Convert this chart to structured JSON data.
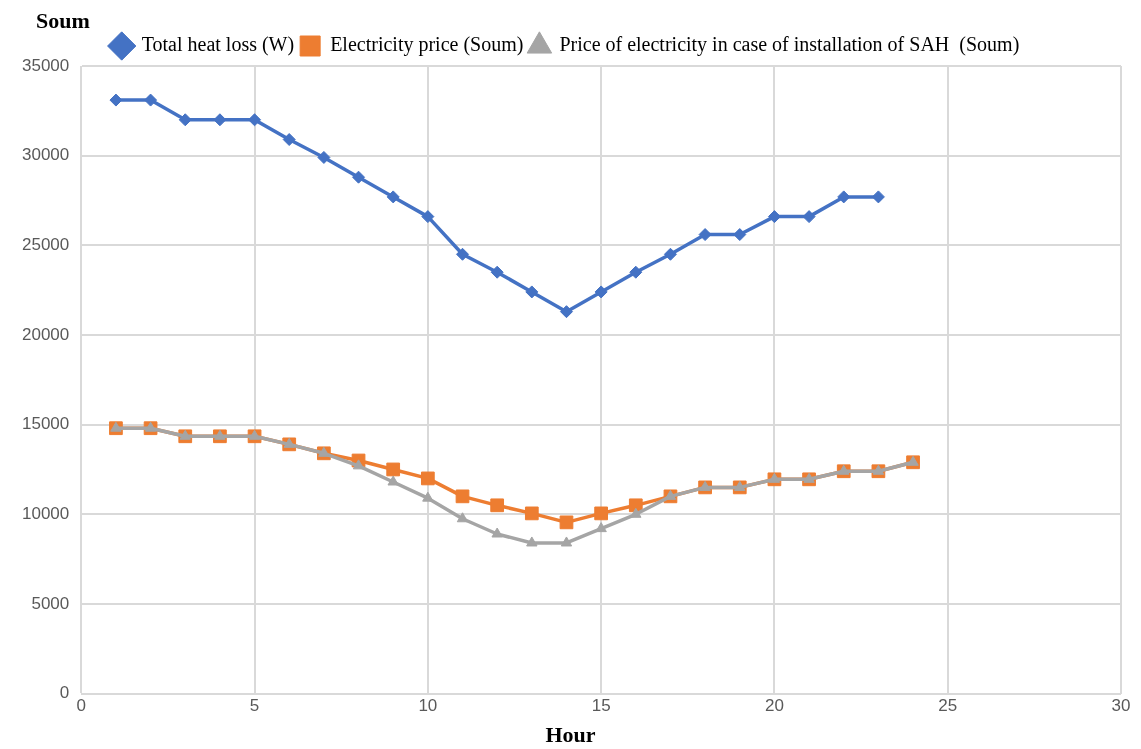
{
  "chart_data": {
    "type": "line",
    "xlabel": "Hour",
    "ylabel": "Soum",
    "x": [
      1,
      2,
      3,
      4,
      5,
      6,
      7,
      8,
      9,
      10,
      11,
      12,
      13,
      14,
      15,
      16,
      17,
      18,
      19,
      20,
      21,
      22,
      23,
      24
    ],
    "series": [
      {
        "name": "Total heat loss (W)",
        "color": "#4472c4",
        "marker": "diamond",
        "values": [
          33100,
          33100,
          32000,
          32000,
          32000,
          30900,
          29900,
          28800,
          27700,
          26600,
          24500,
          23500,
          22400,
          21300,
          22400,
          23500,
          24500,
          25600,
          25600,
          26600,
          26600,
          27700,
          27700,
          null
        ]
      },
      {
        "name": "Electricity price (Soum)",
        "color": "#ed7d31",
        "marker": "square",
        "values": [
          14800,
          14800,
          14350,
          14350,
          14350,
          13900,
          13400,
          13000,
          12500,
          12000,
          11000,
          10500,
          10050,
          9550,
          10050,
          10500,
          11000,
          11500,
          11500,
          11950,
          11950,
          12400,
          12400,
          12900
        ]
      },
      {
        "name": "Price of electricity in case of installation of SAH  (Soum)",
        "color": "#a5a5a5",
        "marker": "triangle",
        "values": [
          14800,
          14800,
          14350,
          14350,
          14350,
          13900,
          13400,
          12700,
          11800,
          10900,
          9750,
          8900,
          8400,
          8400,
          9200,
          10000,
          11000,
          11500,
          11500,
          11950,
          11950,
          12400,
          12400,
          12900
        ]
      }
    ],
    "xlim": [
      0,
      30
    ],
    "xticks": [
      0,
      5,
      10,
      15,
      20,
      25,
      30
    ],
    "ylim": [
      0,
      35000
    ],
    "yticks": [
      0,
      5000,
      10000,
      15000,
      20000,
      25000,
      30000,
      35000
    ],
    "grid": true,
    "legend": "top",
    "line_style": "solid"
  }
}
